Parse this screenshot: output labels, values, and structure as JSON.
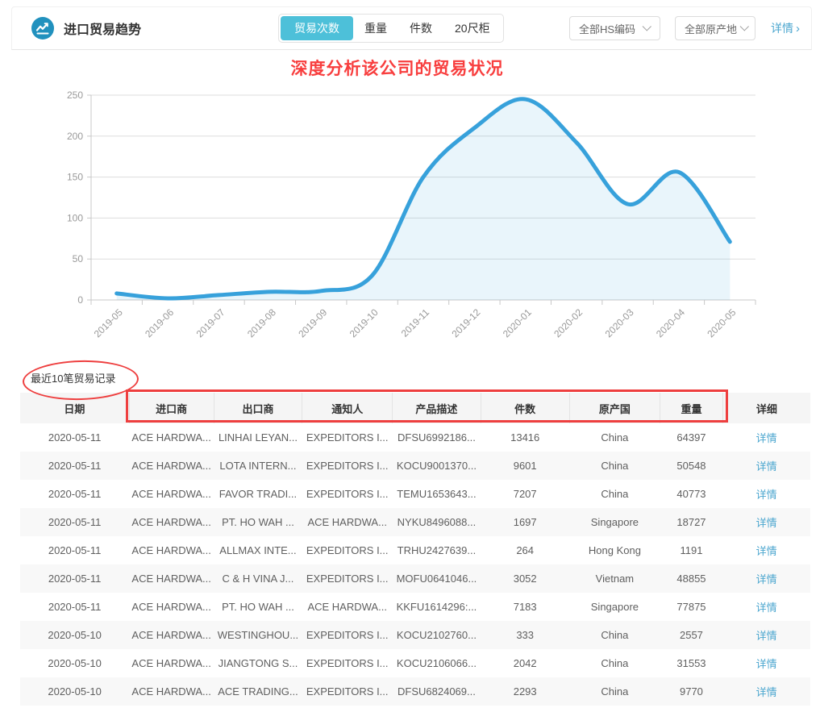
{
  "header": {
    "title": "进口贸易趋势",
    "tabs": [
      {
        "label": "贸易次数",
        "active": true
      },
      {
        "label": "重量",
        "active": false
      },
      {
        "label": "件数",
        "active": false
      },
      {
        "label": "20尺柜",
        "active": false
      }
    ],
    "hs_dropdown": "全部HS编码",
    "origin_dropdown": "全部原产地",
    "detail_link": "详情",
    "detail_arrow": "›"
  },
  "annotations": {
    "chart_note": "深度分析该公司的贸易状况",
    "note_color": "#F83E3E",
    "shape_color": "#EE3F3F"
  },
  "chart_data": {
    "type": "area",
    "title": "",
    "xlabel": "",
    "ylabel": "",
    "categories": [
      "2019-05",
      "2019-06",
      "2019-07",
      "2019-08",
      "2019-09",
      "2019-10",
      "2019-11",
      "2019-12",
      "2020-01",
      "2020-02",
      "2020-03",
      "2020-04",
      "2020-05"
    ],
    "values": [
      8,
      2,
      6,
      10,
      11,
      30,
      150,
      210,
      245,
      192,
      117,
      156,
      71
    ],
    "ylim": [
      0,
      250
    ],
    "ytick_step": 50,
    "grid": true,
    "legend": "none",
    "xlabel_rotation": -45,
    "line_color": "#37A1DB",
    "area_color": "rgba(55,161,219,0.11)",
    "axis_color": "#c8c8c8",
    "grid_color": "#dddddd",
    "tick_label_color": "#999999"
  },
  "records": {
    "section_label": "最近10笔贸易记录",
    "columns": [
      "日期",
      "进口商",
      "出口商",
      "通知人",
      "产品描述",
      "件数",
      "原产国",
      "重量",
      "详细"
    ],
    "rows": [
      {
        "date": "2020-05-11",
        "importer": "ACE HARDWA...",
        "exporter": "LINHAI LEYAN...",
        "notify": "EXPEDITORS I...",
        "product": "DFSU6992186...",
        "pieces": "13416",
        "origin": "China",
        "weight": "64397",
        "detail": "详情"
      },
      {
        "date": "2020-05-11",
        "importer": "ACE HARDWA...",
        "exporter": "LOTA INTERN...",
        "notify": "EXPEDITORS I...",
        "product": "KOCU9001370...",
        "pieces": "9601",
        "origin": "China",
        "weight": "50548",
        "detail": "详情"
      },
      {
        "date": "2020-05-11",
        "importer": "ACE HARDWA...",
        "exporter": "FAVOR TRADI...",
        "notify": "EXPEDITORS I...",
        "product": "TEMU1653643...",
        "pieces": "7207",
        "origin": "China",
        "weight": "40773",
        "detail": "详情"
      },
      {
        "date": "2020-05-11",
        "importer": "ACE HARDWA...",
        "exporter": "PT. HO WAH ...",
        "notify": "ACE HARDWA...",
        "product": "NYKU8496088...",
        "pieces": "1697",
        "origin": "Singapore",
        "weight": "18727",
        "detail": "详情"
      },
      {
        "date": "2020-05-11",
        "importer": "ACE HARDWA...",
        "exporter": "ALLMAX INTE...",
        "notify": "EXPEDITORS I...",
        "product": "TRHU2427639...",
        "pieces": "264",
        "origin": "Hong Kong",
        "weight": "1191",
        "detail": "详情"
      },
      {
        "date": "2020-05-11",
        "importer": "ACE HARDWA...",
        "exporter": "C & H VINA J...",
        "notify": "EXPEDITORS I...",
        "product": "MOFU0641046...",
        "pieces": "3052",
        "origin": "Vietnam",
        "weight": "48855",
        "detail": "详情"
      },
      {
        "date": "2020-05-11",
        "importer": "ACE HARDWA...",
        "exporter": "PT. HO WAH ...",
        "notify": "ACE HARDWA...",
        "product": "KKFU1614296:...",
        "pieces": "7183",
        "origin": "Singapore",
        "weight": "77875",
        "detail": "详情"
      },
      {
        "date": "2020-05-10",
        "importer": "ACE HARDWA...",
        "exporter": "WESTINGHOU...",
        "notify": "EXPEDITORS I...",
        "product": "KOCU2102760...",
        "pieces": "333",
        "origin": "China",
        "weight": "2557",
        "detail": "详情"
      },
      {
        "date": "2020-05-10",
        "importer": "ACE HARDWA...",
        "exporter": "JIANGTONG S...",
        "notify": "EXPEDITORS I...",
        "product": "KOCU2106066...",
        "pieces": "2042",
        "origin": "China",
        "weight": "31553",
        "detail": "详情"
      },
      {
        "date": "2020-05-10",
        "importer": "ACE HARDWA...",
        "exporter": "ACE TRADING...",
        "notify": "EXPEDITORS I...",
        "product": "DFSU6824069...",
        "pieces": "2293",
        "origin": "China",
        "weight": "9770",
        "detail": "详情"
      }
    ]
  }
}
